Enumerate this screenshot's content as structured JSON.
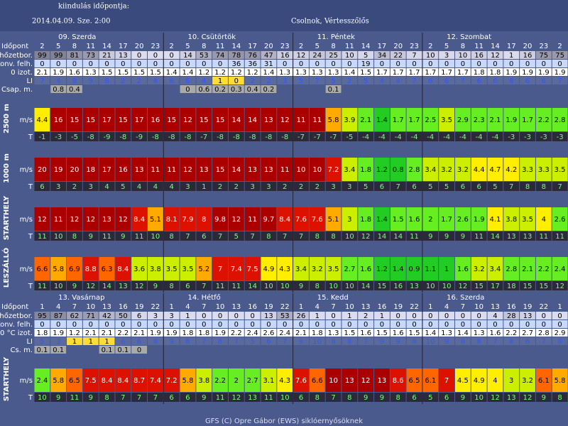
{
  "header": {
    "title": "kiindulás időpontja:",
    "date": "2014.04.09. Sze. 2:00",
    "location": "Csolnok, Vértesszőlős"
  },
  "panels": [
    {
      "days": [
        "09. Szerda",
        "10. Csütörtök",
        "11. Péntek",
        "12. Szombat"
      ],
      "hour_label": "Időpont",
      "hours": [
        2,
        5,
        8,
        11,
        14,
        17,
        20,
        23,
        2,
        5,
        8,
        11,
        14,
        17,
        20,
        23,
        2,
        5,
        8,
        11,
        14,
        17,
        20,
        23,
        2,
        5,
        8,
        11,
        14,
        17,
        20,
        23,
        2
      ],
      "rows": [
        {
          "label": "Felhőzetbor.",
          "kind": "cloud",
          "values": [
            99,
            99,
            81,
            73,
            21,
            13,
            0,
            0,
            0,
            14,
            53,
            74,
            78,
            76,
            47,
            16,
            12,
            24,
            25,
            10,
            5,
            34,
            22,
            7,
            10,
            3,
            10,
            16,
            12,
            1,
            16,
            75,
            75
          ]
        },
        {
          "label": "Konv. felh.",
          "kind": "konv",
          "values": [
            0,
            0,
            0,
            0,
            0,
            0,
            0,
            0,
            0,
            0,
            0,
            0,
            36,
            36,
            31,
            0,
            0,
            0,
            0,
            0,
            19,
            0,
            0,
            0,
            0,
            0,
            0,
            0,
            0,
            0,
            0,
            0,
            0
          ]
        },
        {
          "label": "0 izot.",
          "kind": "izot",
          "values": [
            2.1,
            1.9,
            1.6,
            1.3,
            1.5,
            1.5,
            1.5,
            1.5,
            1.4,
            1.4,
            1.2,
            1.2,
            1.2,
            1.2,
            1.4,
            1.3,
            1.3,
            1.3,
            1.3,
            1.4,
            1.5,
            1.7,
            1.7,
            1.7,
            1.7,
            1.7,
            1.7,
            1.8,
            1.8,
            1.9,
            1.9,
            1.9,
            1.9
          ]
        },
        {
          "label": "LI",
          "kind": "li",
          "values": [
            7,
            4,
            8,
            9,
            8,
            2,
            2,
            4,
            6,
            6,
            4,
            1,
            0,
            2,
            2,
            3,
            5,
            7,
            5,
            2,
            5,
            4,
            4,
            7,
            6,
            6,
            7,
            6,
            6,
            8,
            6,
            6,
            7
          ]
        },
        {
          "label": "Csap. m.",
          "kind": "csap",
          "values": [
            null,
            0.8,
            0.4,
            null,
            null,
            null,
            null,
            null,
            null,
            0,
            0.6,
            0.2,
            0.3,
            0.4,
            0.2,
            null,
            null,
            null,
            0.1,
            null,
            null,
            null,
            null,
            null,
            null,
            null,
            null,
            null,
            null,
            null,
            null,
            null,
            null
          ]
        }
      ],
      "blocks": [
        {
          "label": "2500 m",
          "rows": [
            {
              "label": "m/s",
              "kind": "wind",
              "values": [
                4.4,
                16,
                15,
                15,
                17,
                15,
                17,
                16,
                15,
                12,
                15,
                15,
                14,
                14,
                13,
                12,
                11,
                11,
                5.8,
                3.9,
                2.1,
                1.4,
                1.7,
                1.7,
                2.5,
                3.5,
                2.9,
                2.3,
                2.1,
                1.9,
                1.7,
                2.2,
                2.8
              ]
            },
            {
              "label": "T",
              "kind": "temp",
              "values": [
                -1,
                -3,
                -5,
                -8,
                -9,
                -8,
                -9,
                -8,
                -8,
                -8,
                -7,
                -8,
                -8,
                -8,
                -8,
                -8,
                -7,
                -7,
                -7,
                -5,
                -4,
                -4,
                -4,
                -4,
                -4,
                -4,
                -4,
                -4,
                -4,
                -3,
                -3,
                -3,
                -3
              ]
            }
          ]
        },
        {
          "label": "1000 m",
          "rows": [
            {
              "label": "m/s",
              "kind": "wind",
              "values": [
                20,
                19,
                20,
                18,
                17,
                16,
                13,
                11,
                11,
                12,
                13,
                15,
                14,
                13,
                13,
                11,
                10,
                10,
                7.2,
                3.4,
                1.8,
                1.2,
                0.8,
                2.8,
                3.4,
                3.2,
                3.2,
                4.4,
                4.7,
                4.2,
                3.3,
                3.3,
                3.5
              ]
            },
            {
              "label": "T",
              "kind": "temp",
              "values": [
                6,
                3,
                2,
                3,
                4,
                5,
                4,
                4,
                4,
                3,
                1,
                2,
                2,
                3,
                3,
                2,
                2,
                2,
                3,
                3,
                5,
                6,
                7,
                6,
                5,
                5,
                6,
                6,
                5,
                7,
                8,
                8,
                7
              ]
            }
          ]
        },
        {
          "label": "STARTHELY",
          "rows": [
            {
              "label": "m/s",
              "kind": "wind",
              "values": [
                12,
                11,
                12,
                12,
                13,
                12,
                8.4,
                5.1,
                8.1,
                7.9,
                8,
                9.8,
                12,
                11,
                9.7,
                8.4,
                7.6,
                7.6,
                5.1,
                3,
                1.8,
                1.4,
                1.5,
                1.6,
                2,
                1.7,
                2.6,
                1.9,
                4.1,
                3.8,
                3.5,
                4,
                2.6
              ]
            },
            {
              "label": "T",
              "kind": "temp",
              "values": [
                11,
                10,
                8,
                9,
                11,
                9,
                11,
                10,
                8,
                7,
                6,
                7,
                5,
                7,
                8,
                7,
                7,
                8,
                8,
                10,
                12,
                14,
                14,
                11,
                9,
                9,
                9,
                11,
                14,
                13,
                13,
                11,
                11
              ]
            }
          ]
        },
        {
          "label": "LESZÁLLÓ",
          "rows": [
            {
              "label": "m/s",
              "kind": "wind",
              "values": [
                6.6,
                5.8,
                6.9,
                8.8,
                6.3,
                8.4,
                3.6,
                3.8,
                3.5,
                3.5,
                5.2,
                7,
                7.4,
                7.5,
                4.9,
                4.3,
                3.4,
                3.2,
                3.5,
                2.7,
                1.6,
                1.2,
                1.4,
                0.9,
                1.1,
                1,
                1.6,
                3.2,
                3.4,
                2.8,
                2.1,
                2.2,
                2.4
              ]
            },
            {
              "label": "T",
              "kind": "temp",
              "values": [
                11,
                10,
                9,
                12,
                14,
                13,
                12,
                9,
                8,
                6,
                7,
                11,
                11,
                14,
                10,
                10,
                9,
                8,
                10,
                10,
                14,
                15,
                16,
                13,
                10,
                10,
                12,
                15,
                17,
                18,
                15,
                15,
                12
              ]
            }
          ]
        }
      ]
    },
    {
      "days": [
        "13. Vasárnap",
        "14. Hétfő",
        "15. Kedd",
        "16. Szerda"
      ],
      "hour_label": "Időpont",
      "hours": [
        1,
        4,
        7,
        10,
        13,
        16,
        19,
        22,
        1,
        4,
        7,
        10,
        13,
        16,
        19,
        22,
        1,
        4,
        7,
        10,
        13,
        16,
        19,
        22,
        1,
        4,
        7,
        10,
        13,
        16,
        19,
        22,
        1
      ],
      "rows": [
        {
          "label": "Felhőzetbor.",
          "kind": "cloud",
          "values": [
            95,
            87,
            62,
            71,
            42,
            50,
            6,
            3,
            3,
            1,
            0,
            0,
            0,
            0,
            13,
            53,
            26,
            1,
            0,
            1,
            2,
            1,
            0,
            0,
            0,
            0,
            0,
            0,
            4,
            28,
            13,
            0,
            0
          ]
        },
        {
          "label": "Konv. felh.",
          "kind": "konv",
          "values": [
            0,
            0,
            0,
            0,
            0,
            0,
            0,
            0,
            0,
            0,
            0,
            0,
            0,
            0,
            0,
            0,
            0,
            0,
            0,
            0,
            0,
            0,
            0,
            0,
            0,
            0,
            0,
            0,
            0,
            0,
            0,
            0,
            0
          ]
        },
        {
          "label": "0 °C izot.",
          "kind": "izot",
          "values": [
            1.8,
            1.9,
            1.2,
            2.1,
            2.1,
            2.2,
            2.1,
            1.9,
            1.9,
            1.8,
            1.8,
            1.9,
            2.2,
            2.4,
            2.6,
            2.4,
            2.1,
            1.8,
            1.3,
            1.5,
            1.6,
            1.5,
            1.6,
            1.5,
            1.4,
            1.3,
            1.4,
            1.3,
            1.6,
            2.2,
            2.7,
            2.8,
            2.9
          ]
        },
        {
          "label": "LI",
          "kind": "li",
          "values": [
            5,
            3,
            1,
            1,
            1,
            6,
            6,
            8,
            9,
            8,
            7,
            8,
            7,
            5,
            6,
            7,
            9,
            10,
            8,
            8,
            7,
            9,
            9,
            8,
            10,
            9,
            8,
            8,
            7,
            8,
            6,
            7,
            8
          ]
        },
        {
          "label": "Cs. m.",
          "kind": "csap",
          "values": [
            0.1,
            0.1,
            null,
            null,
            0.1,
            0.1,
            0,
            null,
            null,
            null,
            null,
            null,
            null,
            null,
            null,
            null,
            null,
            null,
            null,
            null,
            null,
            null,
            null,
            null,
            null,
            null,
            null,
            null,
            null,
            null,
            null,
            null,
            null
          ]
        }
      ],
      "blocks": [
        {
          "label": "STARTHELY",
          "rows": [
            {
              "label": "m/s",
              "kind": "wind",
              "values": [
                2.4,
                5.8,
                6.5,
                7.5,
                8.4,
                8.4,
                8.7,
                7.4,
                7.2,
                5.8,
                3.8,
                2.2,
                2,
                2.7,
                3.1,
                4.3,
                7.6,
                6.6,
                10,
                13,
                12,
                13,
                8.6,
                6.5,
                6.1,
                7,
                4.5,
                4.9,
                4,
                3,
                3.2,
                6.1,
                5.8
              ]
            },
            {
              "label": "T",
              "kind": "temp",
              "values": [
                10,
                9,
                11,
                9,
                8,
                7,
                7,
                7,
                6,
                6,
                9,
                11,
                12,
                13,
                11,
                10,
                6,
                8,
                7,
                8,
                9,
                9,
                8,
                6,
                5,
                6,
                9,
                10,
                12,
                13,
                12,
                9,
                8
              ]
            }
          ]
        }
      ]
    }
  ],
  "footer": "GFS (C) Opre Gábor (EWS) siklóernyősöknek"
}
